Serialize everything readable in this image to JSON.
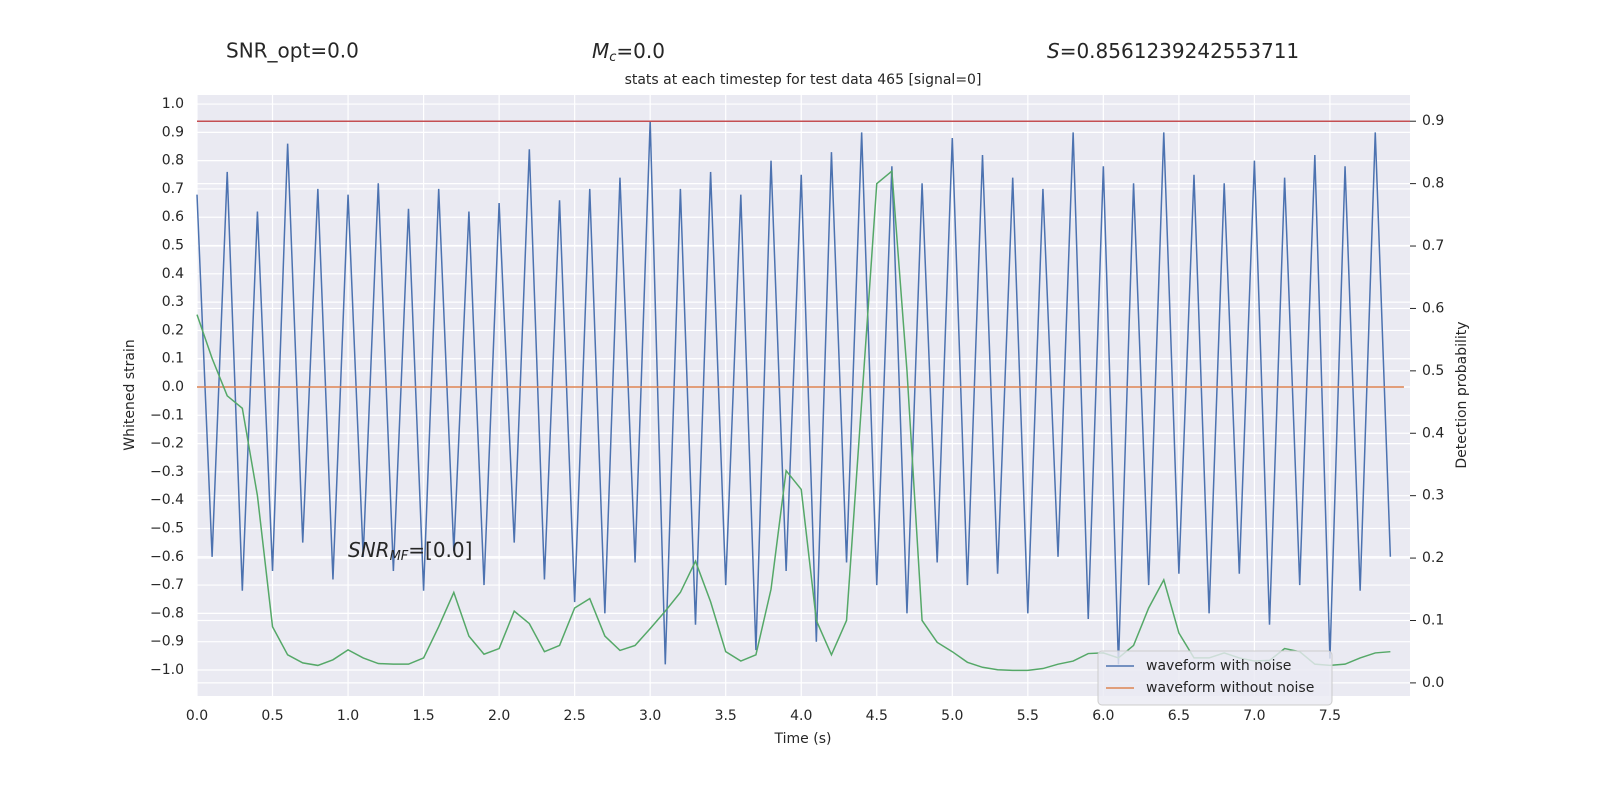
{
  "chart_data": {
    "type": "line",
    "title": "stats at each timestep for test data 465 [signal=0]",
    "header": {
      "snr_opt": "SNR_opt=0.0",
      "mc_symbol": "M",
      "mc_sub": "c",
      "mc_rest": "=0.0",
      "s_symbol": "S",
      "s_rest": "=0.8561239242553711"
    },
    "annotation": {
      "symbol": "SNR",
      "sub": "MF",
      "rest": "=[0.0]"
    },
    "xlabel": "Time (s)",
    "ylabel": "Whitened strain",
    "y2label": "Detection probability",
    "x": [
      0.0,
      0.1,
      0.2,
      0.3,
      0.4,
      0.5,
      0.6,
      0.7,
      0.8,
      0.9,
      1.0,
      1.1,
      1.2,
      1.3,
      1.4,
      1.5,
      1.6,
      1.7,
      1.8,
      1.9,
      2.0,
      2.1,
      2.2,
      2.3,
      2.4,
      2.5,
      2.6,
      2.7,
      2.8,
      2.9,
      3.0,
      3.1,
      3.2,
      3.3,
      3.4,
      3.5,
      3.6,
      3.7,
      3.8,
      3.9,
      4.0,
      4.1,
      4.2,
      4.3,
      4.4,
      4.5,
      4.6,
      4.7,
      4.8,
      4.9,
      5.0,
      5.1,
      5.2,
      5.3,
      5.4,
      5.5,
      5.6,
      5.7,
      5.8,
      5.9,
      6.0,
      6.1,
      6.2,
      6.3,
      6.4,
      6.5,
      6.6,
      6.7,
      6.8,
      6.9,
      7.0,
      7.1,
      7.2,
      7.3,
      7.4,
      7.5,
      7.6,
      7.7,
      7.8,
      7.9
    ],
    "series": [
      {
        "name": "waveform with noise",
        "color": "#4c72b0",
        "values": [
          0.68,
          -0.6,
          0.76,
          -0.72,
          0.62,
          -0.65,
          0.86,
          -0.55,
          0.7,
          -0.68,
          0.68,
          -0.6,
          0.72,
          -0.65,
          0.63,
          -0.72,
          0.7,
          -0.58,
          0.62,
          -0.7,
          0.65,
          -0.55,
          0.84,
          -0.68,
          0.66,
          -0.76,
          0.7,
          -0.8,
          0.74,
          -0.62,
          0.94,
          -0.98,
          0.7,
          -0.84,
          0.76,
          -0.7,
          0.68,
          -0.93,
          0.8,
          -0.65,
          0.75,
          -0.9,
          0.83,
          -0.62,
          0.9,
          -0.7,
          0.78,
          -0.8,
          0.72,
          -0.62,
          0.88,
          -0.7,
          0.82,
          -0.66,
          0.74,
          -0.8,
          0.7,
          -0.6,
          0.9,
          -0.82,
          0.78,
          -0.98,
          0.72,
          -0.7,
          0.9,
          -0.66,
          0.75,
          -0.8,
          0.72,
          -0.66,
          0.8,
          -0.84,
          0.74,
          -0.7,
          0.82,
          -0.96,
          0.78,
          -0.72,
          0.9,
          -0.6
        ]
      },
      {
        "name": "waveform without noise",
        "color": "#dd8452",
        "x": [
          0.0,
          7.99
        ],
        "values": [
          0.0,
          0.0
        ]
      },
      {
        "color": "#55a868",
        "axis": "y2",
        "values": [
          0.59,
          0.52,
          0.46,
          0.44,
          0.3,
          0.09,
          0.045,
          0.032,
          0.028,
          0.037,
          0.053,
          0.04,
          0.031,
          0.03,
          0.03,
          0.04,
          0.09,
          0.145,
          0.075,
          0.046,
          0.055,
          0.115,
          0.095,
          0.05,
          0.06,
          0.12,
          0.135,
          0.075,
          0.052,
          0.06,
          0.087,
          0.115,
          0.145,
          0.195,
          0.13,
          0.05,
          0.035,
          0.045,
          0.15,
          0.34,
          0.31,
          0.1,
          0.045,
          0.1,
          0.45,
          0.8,
          0.82,
          0.5,
          0.1,
          0.065,
          0.05,
          0.033,
          0.025,
          0.021,
          0.02,
          0.02,
          0.023,
          0.03,
          0.035,
          0.047,
          0.048,
          0.04,
          0.06,
          0.12,
          0.165,
          0.08,
          0.04,
          0.04,
          0.048,
          0.04,
          0.035,
          0.036,
          0.055,
          0.05,
          0.03,
          0.028,
          0.03,
          0.04,
          0.048,
          0.05
        ]
      }
    ],
    "threshold": {
      "value": 0.9,
      "axis": "y2",
      "color": "#c44e52"
    },
    "xlim": [
      0,
      8.03
    ],
    "ylim": [
      -1.092,
      1.032
    ],
    "y2lim": [
      -0.021,
      0.942
    ],
    "xticks": [
      {
        "value": 0,
        "label": "0.0"
      },
      0.5,
      {
        "value": 1,
        "label": "1.0"
      },
      1.5,
      {
        "value": 2,
        "label": "2.0"
      },
      2.5,
      {
        "value": 3,
        "label": "3.0"
      },
      3.5,
      {
        "value": 4,
        "label": "4.0"
      },
      4.5,
      {
        "value": 5,
        "label": "5.0"
      },
      5.5,
      {
        "value": 6,
        "label": "6.0"
      },
      6.5,
      {
        "value": 7,
        "label": "7.0"
      },
      7.5
    ],
    "yticks": [
      {
        "value": -1,
        "label": "−1.0"
      },
      {
        "value": -0.9,
        "label": "−0.9"
      },
      {
        "value": -0.8,
        "label": "−0.8"
      },
      {
        "value": -0.7,
        "label": "−0.7"
      },
      {
        "value": -0.6,
        "label": "−0.6"
      },
      {
        "value": -0.5,
        "label": "−0.5"
      },
      {
        "value": -0.4,
        "label": "−0.4"
      },
      {
        "value": -0.3,
        "label": "−0.3"
      },
      {
        "value": -0.2,
        "label": "−0.2"
      },
      {
        "value": -0.1,
        "label": "−0.1"
      },
      {
        "value": 0,
        "label": "0.0"
      },
      0.1,
      0.2,
      0.3,
      0.4,
      0.5,
      0.6,
      0.7,
      0.8,
      0.9,
      {
        "value": 1,
        "label": "1.0"
      }
    ],
    "y2ticks": [
      {
        "value": 0,
        "label": "0.0"
      },
      0.1,
      0.2,
      0.3,
      0.4,
      0.5,
      0.6,
      0.7,
      0.8,
      0.9
    ],
    "grid": true,
    "legend": "lower right"
  }
}
